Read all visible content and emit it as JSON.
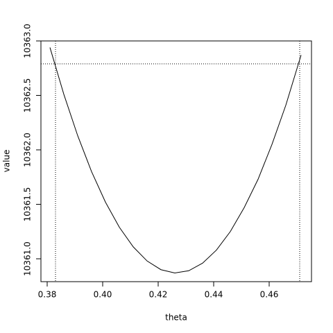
{
  "chart_data": {
    "type": "line",
    "x_label": "theta",
    "y_label": "value",
    "x": [
      0.381,
      0.386,
      0.391,
      0.396,
      0.401,
      0.406,
      0.411,
      0.416,
      0.421,
      0.426,
      0.431,
      0.436,
      0.441,
      0.446,
      0.451,
      0.456,
      0.461,
      0.466,
      0.4715
    ],
    "values": [
      10362.94,
      10362.51,
      10362.13,
      10361.8,
      10361.52,
      10361.29,
      10361.11,
      10360.98,
      10360.9,
      10360.87,
      10360.89,
      10360.96,
      10361.08,
      10361.25,
      10361.47,
      10361.73,
      10362.05,
      10362.41,
      10362.87
    ],
    "color": "#000000",
    "xlim": [
      0.37775,
      0.47525
    ],
    "ylim": [
      10360.79,
      10363.0
    ],
    "xticks": [
      0.38,
      {
        "value": 0.4,
        "label": "0.40"
      },
      0.42,
      0.44,
      0.46
    ],
    "yticks": [
      {
        "value": 10361,
        "label": "10361.0"
      },
      10361.5,
      {
        "value": 10362,
        "label": "10362.0"
      },
      10362.5,
      {
        "value": 10363,
        "label": "10363.0"
      }
    ],
    "hline": 10362.79,
    "vlines": [
      0.383,
      0.471
    ]
  }
}
